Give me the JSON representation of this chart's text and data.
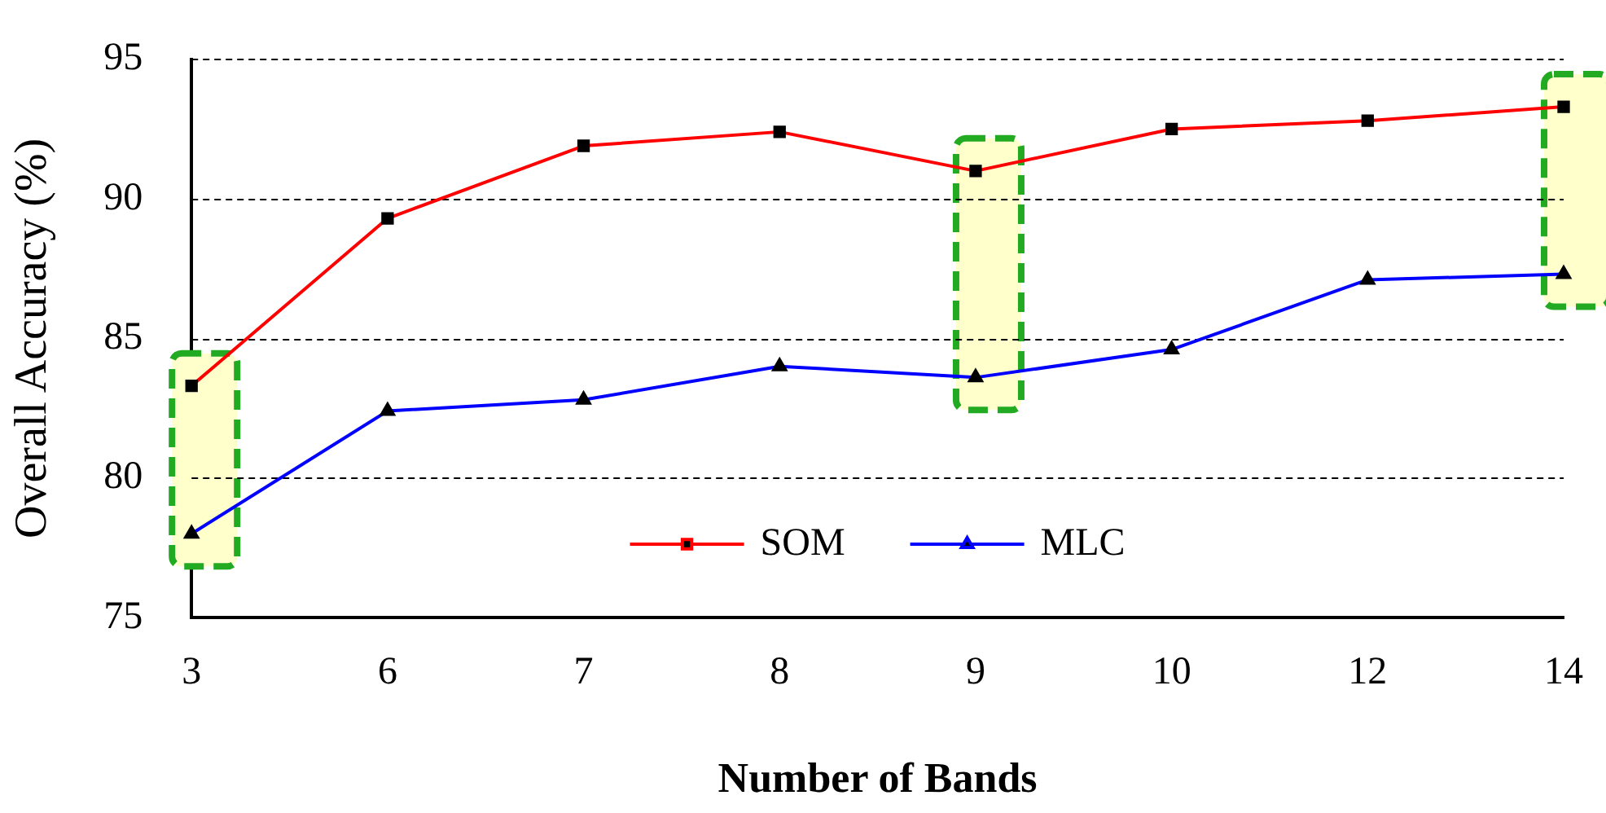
{
  "chart_data": {
    "type": "line",
    "xlabel": "Number of Bands",
    "ylabel": "Overall Accuracy (%)",
    "categories": [
      "3",
      "6",
      "7",
      "8",
      "9",
      "10",
      "12",
      "14"
    ],
    "series": [
      {
        "name": "SOM",
        "color": "#ff0000",
        "marker": "square",
        "values": [
          83.3,
          89.3,
          91.9,
          92.4,
          91.0,
          92.5,
          92.8,
          93.3
        ]
      },
      {
        "name": "MLC",
        "color": "#0000ff",
        "marker": "triangle",
        "values": [
          78.0,
          82.4,
          82.8,
          84.0,
          83.6,
          84.6,
          87.1,
          87.3
        ]
      }
    ],
    "ylim": [
      75,
      95
    ],
    "yticks": [
      75,
      80,
      85,
      90,
      95
    ],
    "grid": "y",
    "legend": "bottom",
    "bands": [
      {
        "axis": "x",
        "from": "3",
        "to": "3",
        "color": "#ffffcc"
      },
      {
        "axis": "x",
        "from": "9",
        "to": "9",
        "color": "#ffffcc"
      },
      {
        "axis": "x",
        "from": "14",
        "to": "14",
        "color": "#ffffcc"
      }
    ]
  }
}
